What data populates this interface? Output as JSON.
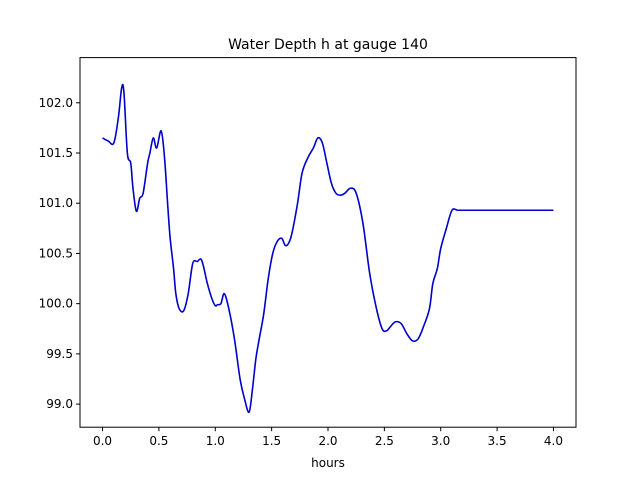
{
  "chart_data": {
    "type": "line",
    "title": "Water Depth h at gauge 140",
    "xlabel": "hours",
    "ylabel": "",
    "xlim": [
      -0.2,
      4.2
    ],
    "ylim": [
      98.77,
      102.45
    ],
    "xticks": [
      0.0,
      0.5,
      1.0,
      1.5,
      2.0,
      2.5,
      3.0,
      3.5,
      4.0
    ],
    "xtick_labels": [
      "0.0",
      "0.5",
      "1.0",
      "1.5",
      "2.0",
      "2.5",
      "3.0",
      "3.5",
      "4.0"
    ],
    "yticks": [
      99.0,
      99.5,
      100.0,
      100.5,
      101.0,
      101.5,
      102.0
    ],
    "ytick_labels": [
      "99.0",
      "99.5",
      "100.0",
      "100.5",
      "101.0",
      "101.5",
      "102.0"
    ],
    "grid": false,
    "series": [
      {
        "color": "#0000cc",
        "x": [
          0.0,
          0.05,
          0.1,
          0.14,
          0.17,
          0.19,
          0.22,
          0.25,
          0.27,
          0.3,
          0.33,
          0.36,
          0.4,
          0.42,
          0.45,
          0.48,
          0.52,
          0.55,
          0.58,
          0.6,
          0.63,
          0.65,
          0.68,
          0.72,
          0.76,
          0.8,
          0.84,
          0.88,
          0.93,
          0.97,
          1.0,
          1.02,
          1.05,
          1.08,
          1.12,
          1.17,
          1.22,
          1.26,
          1.3,
          1.33,
          1.36,
          1.39,
          1.43,
          1.47,
          1.51,
          1.55,
          1.59,
          1.62,
          1.65,
          1.68,
          1.73,
          1.77,
          1.82,
          1.87,
          1.91,
          1.95,
          1.99,
          2.03,
          2.07,
          2.11,
          2.15,
          2.2,
          2.25,
          2.31,
          2.37,
          2.43,
          2.48,
          2.52,
          2.56,
          2.6,
          2.65,
          2.7,
          2.75,
          2.8,
          2.85,
          2.9,
          2.93,
          2.97,
          3.0,
          3.05,
          3.1,
          3.15,
          3.2,
          3.25,
          3.3,
          3.35,
          3.4,
          3.44,
          3.48,
          3.52,
          3.56,
          3.6,
          3.65,
          3.7,
          3.75,
          3.8,
          3.85,
          3.9,
          3.95,
          4.0
        ],
        "y": [
          101.65,
          101.62,
          101.6,
          101.85,
          102.15,
          102.1,
          101.5,
          101.4,
          101.15,
          100.92,
          101.05,
          101.1,
          101.4,
          101.5,
          101.65,
          101.55,
          101.72,
          101.45,
          100.95,
          100.65,
          100.35,
          100.1,
          99.95,
          99.93,
          100.1,
          100.4,
          100.42,
          100.43,
          100.2,
          100.05,
          99.98,
          99.99,
          100.0,
          100.1,
          99.95,
          99.65,
          99.25,
          99.05,
          98.92,
          99.15,
          99.45,
          99.65,
          99.9,
          100.25,
          100.5,
          100.62,
          100.65,
          100.58,
          100.6,
          100.7,
          101.0,
          101.3,
          101.45,
          101.55,
          101.65,
          101.6,
          101.4,
          101.2,
          101.1,
          101.08,
          101.1,
          101.15,
          101.1,
          100.8,
          100.3,
          99.95,
          99.75,
          99.73,
          99.78,
          99.82,
          99.8,
          99.7,
          99.63,
          99.65,
          99.78,
          99.95,
          100.2,
          100.35,
          100.55,
          100.75,
          100.93,
          100.93,
          100.93,
          100.93,
          100.93,
          100.93,
          100.93,
          100.93,
          100.93,
          100.93,
          100.93,
          100.93,
          100.93,
          100.93,
          100.93,
          100.93,
          100.93,
          100.93,
          100.93,
          100.93
        ]
      }
    ]
  }
}
